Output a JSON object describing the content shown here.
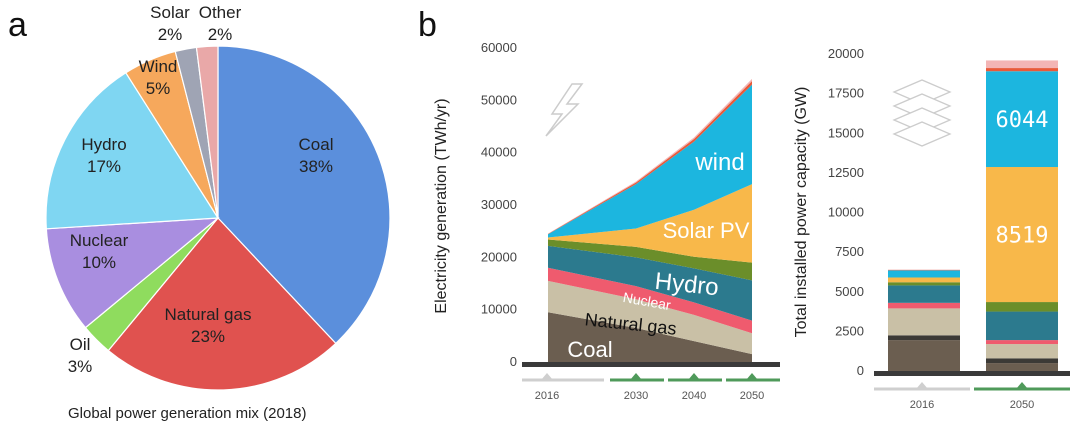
{
  "chart_data": [
    {
      "type": "pie",
      "panel": "a",
      "caption": "Global power generation mix (2018)",
      "slices": [
        {
          "name": "Coal",
          "pct": "38%",
          "value": 38,
          "color": "#5b8fdc"
        },
        {
          "name": "Natural gas",
          "pct": "23%",
          "value": 23,
          "color": "#e0524f"
        },
        {
          "name": "Oil",
          "pct": "3%",
          "value": 3,
          "color": "#8fdc5e"
        },
        {
          "name": "Nuclear",
          "pct": "10%",
          "value": 10,
          "color": "#a98ee0"
        },
        {
          "name": "Hydro",
          "pct": "17%",
          "value": 17,
          "color": "#7fd6f2"
        },
        {
          "name": "Wind",
          "pct": "5%",
          "value": 5,
          "color": "#f6a85c"
        },
        {
          "name": "Solar",
          "pct": "2%",
          "value": 2,
          "color": "#9fa4b4"
        },
        {
          "name": "Other",
          "pct": "2%",
          "value": 2,
          "color": "#e9a8a8"
        }
      ]
    },
    {
      "type": "area",
      "panel": "b",
      "ylabel": "Electricity generation (TWh/yr)",
      "x": [
        "2016",
        "2030",
        "2040",
        "2050"
      ],
      "ylim": [
        0,
        60000
      ],
      "yticks": [
        "0",
        "10000",
        "20000",
        "30000",
        "40000",
        "50000",
        "60000"
      ],
      "series": [
        {
          "name": "Coal",
          "label": "Coal",
          "color": "#6b5e50",
          "values": [
            9500,
            6500,
            4000,
            1500
          ]
        },
        {
          "name": "Natural gas",
          "label": "Natural gas",
          "color": "#c9c0a6",
          "values": [
            6000,
            5500,
            5000,
            4000
          ]
        },
        {
          "name": "Nuclear",
          "label": "Nuclear",
          "color": "#ef5b6e",
          "values": [
            2500,
            2500,
            2400,
            2400
          ]
        },
        {
          "name": "Hydro",
          "label": "Hydro",
          "color": "#2c7a8e",
          "values": [
            4200,
            5500,
            6500,
            7700
          ]
        },
        {
          "name": "Other green",
          "label": "",
          "color": "#6b8e2a",
          "values": [
            1200,
            2000,
            2200,
            3400
          ]
        },
        {
          "name": "Solar PV",
          "label": "Solar PV",
          "color": "#f8b84a",
          "values": [
            400,
            3500,
            9000,
            15000
          ]
        },
        {
          "name": "Wind",
          "label": "wind",
          "color": "#1cb6df",
          "values": [
            600,
            8500,
            13000,
            19000
          ]
        },
        {
          "name": "Other",
          "label": "",
          "color": "#e85a3a",
          "values": [
            80,
            300,
            500,
            700
          ]
        },
        {
          "name": "Other2",
          "label": "",
          "color": "#f3b5b5",
          "values": [
            50,
            200,
            300,
            400
          ]
        }
      ]
    },
    {
      "type": "bar",
      "panel": "b",
      "ylabel": "Total installed power capacity (GW)",
      "categories": [
        "2016",
        "2050"
      ],
      "ylim": [
        0,
        20000
      ],
      "yticks": [
        "0",
        "2500",
        "5000",
        "7500",
        "10000",
        "12500",
        "15000",
        "17500",
        "20000"
      ],
      "series": [
        {
          "name": "Coal",
          "color": "#6b5e50",
          "values": [
            1950,
            500
          ]
        },
        {
          "name": "Dark band",
          "color": "#3c3a36",
          "values": [
            300,
            300
          ]
        },
        {
          "name": "Natural gas",
          "color": "#c9c0a6",
          "values": [
            1700,
            900
          ]
        },
        {
          "name": "Nuclear",
          "color": "#ef5b6e",
          "values": [
            350,
            250
          ]
        },
        {
          "name": "Hydro",
          "color": "#2c7a8e",
          "values": [
            1100,
            1800
          ]
        },
        {
          "name": "Other green",
          "color": "#6b8e2a",
          "values": [
            200,
            600
          ]
        },
        {
          "name": "Solar PV",
          "color": "#f8b84a",
          "values": [
            300,
            8519
          ]
        },
        {
          "name": "Wind",
          "color": "#1cb6df",
          "values": [
            450,
            6044
          ]
        },
        {
          "name": "Other",
          "color": "#e85a3a",
          "values": [
            30,
            200
          ]
        },
        {
          "name": "Other2",
          "color": "#f3b5b5",
          "values": [
            20,
            480
          ]
        }
      ],
      "data_labels": [
        {
          "series": "Solar PV",
          "category": "2050",
          "text": "8519"
        },
        {
          "series": "Wind",
          "category": "2050",
          "text": "6044"
        }
      ]
    }
  ],
  "labels": {
    "panel_a": "a",
    "panel_b": "b"
  }
}
